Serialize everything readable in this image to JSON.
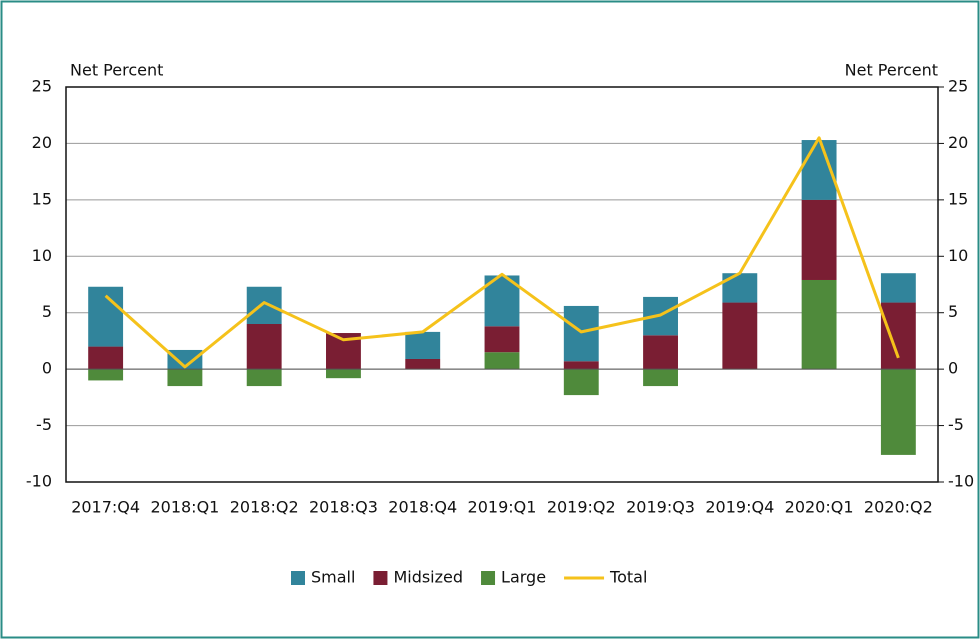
{
  "chart_data": {
    "type": "bar",
    "y_label": "Net Percent",
    "y2_label": "Net Percent",
    "categories": [
      "2017:Q4",
      "2018:Q1",
      "2018:Q2",
      "2018:Q3",
      "2018:Q4",
      "2019:Q1",
      "2019:Q2",
      "2019:Q3",
      "2019:Q4",
      "2020:Q1",
      "2020:Q2"
    ],
    "series": [
      {
        "name": "Small",
        "color": "#31849b",
        "values": [
          5.3,
          1.7,
          3.3,
          0,
          2.4,
          4.5,
          4.9,
          3.4,
          2.6,
          5.3,
          2.6
        ]
      },
      {
        "name": "Midsized",
        "color": "#7a1e33",
        "values": [
          2,
          0,
          4,
          3.2,
          0.9,
          2.3,
          0.7,
          3,
          5.9,
          7.1,
          5.9
        ]
      },
      {
        "name": "Large",
        "color": "#4f8a3b",
        "values": [
          -1,
          -1.5,
          -1.5,
          -0.8,
          0,
          1.5,
          -2.3,
          -1.5,
          0,
          7.9,
          -7.6
        ]
      },
      {
        "name": "Total",
        "color": "#f5c21b",
        "type": "line",
        "values": [
          6.5,
          0.2,
          5.9,
          2.6,
          3.3,
          8.4,
          3.3,
          4.8,
          8.5,
          20.5,
          1.0
        ]
      }
    ],
    "ylim": [
      -10,
      25
    ],
    "yticks": [
      -10,
      -5,
      0,
      5,
      10,
      15,
      20,
      25
    ],
    "y2lim": [
      -10,
      25
    ],
    "y2ticks": [
      -10,
      -5,
      0,
      5,
      10,
      15,
      20,
      25
    ],
    "grid": true,
    "legend": "bottom"
  }
}
